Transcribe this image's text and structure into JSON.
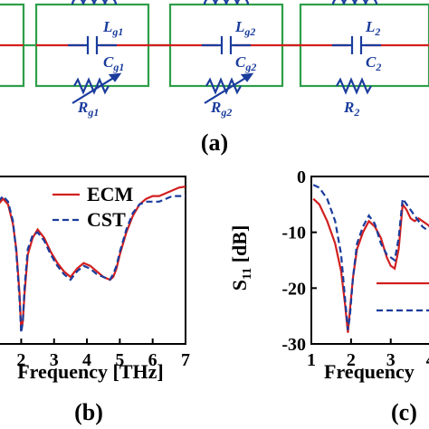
{
  "circuit": {
    "label": "(a)",
    "branches": [
      {
        "L": "L",
        "L_sub": "g1",
        "C": "C",
        "C_sub": "g1",
        "R": "R",
        "R_sub": "g1",
        "tunable": true
      },
      {
        "L": "L",
        "L_sub": "g2",
        "C": "C",
        "C_sub": "g2",
        "R": "R",
        "R_sub": "g2",
        "tunable": true
      },
      {
        "L": "L",
        "L_sub": "2",
        "C": "C",
        "C_sub": "2",
        "R": "R",
        "R_sub": "2",
        "tunable": false
      }
    ],
    "colors": {
      "wire_outer": "#2e9e4a",
      "wire_center": "#d21f1f",
      "component": "#1a3c9c"
    }
  },
  "chart_data": [
    {
      "panel_label": "(b)",
      "type": "line",
      "xlabel": "Frequency [THz]",
      "ylabel": "",
      "xticks": [
        "2",
        "3",
        "4",
        "5",
        "6",
        "7"
      ],
      "xlim": [
        1.3,
        7
      ],
      "ylim": [
        -30,
        0
      ],
      "legend_position": "top-right",
      "series": [
        {
          "name": "ECM",
          "color": "#d21f1f",
          "dash": "solid",
          "x": [
            1.3,
            1.45,
            1.6,
            1.75,
            1.85,
            1.95,
            2.0,
            2.05,
            2.1,
            2.2,
            2.35,
            2.5,
            2.7,
            2.9,
            3.1,
            3.3,
            3.5,
            3.7,
            3.9,
            4.1,
            4.3,
            4.5,
            4.7,
            4.8,
            4.9,
            5.0,
            5.2,
            5.4,
            5.6,
            5.8,
            6.0,
            6.2,
            6.4,
            6.6,
            6.8,
            7.0
          ],
          "y": [
            -5,
            -4,
            -5,
            -8.5,
            -13,
            -21,
            -27.5,
            -26,
            -21,
            -14,
            -11,
            -9.5,
            -11,
            -13.5,
            -15.5,
            -17,
            -18,
            -16.5,
            -15.5,
            -16,
            -17,
            -18,
            -18.5,
            -18,
            -16.5,
            -14,
            -10,
            -7,
            -5,
            -4,
            -3.5,
            -3.5,
            -3,
            -2.5,
            -2,
            -1.8
          ]
        },
        {
          "name": "CST",
          "color": "#1a3c9c",
          "dash": "dashed",
          "x": [
            1.3,
            1.45,
            1.6,
            1.75,
            1.85,
            1.95,
            2.0,
            2.05,
            2.1,
            2.2,
            2.35,
            2.5,
            2.7,
            2.9,
            3.1,
            3.3,
            3.5,
            3.7,
            3.9,
            4.1,
            4.3,
            4.5,
            4.7,
            4.8,
            4.9,
            5.0,
            5.2,
            5.4,
            5.6,
            5.8,
            6.0,
            6.2,
            6.4,
            6.6,
            6.8,
            7.0
          ],
          "y": [
            -4.5,
            -3.5,
            -4.5,
            -8,
            -13.5,
            -22,
            -28,
            -26,
            -20,
            -13,
            -10.5,
            -10,
            -11.5,
            -14,
            -16,
            -17.5,
            -18.5,
            -17,
            -16,
            -16.5,
            -17.5,
            -18,
            -18.5,
            -17.5,
            -16,
            -13.5,
            -9.5,
            -6.5,
            -5,
            -4.5,
            -4.5,
            -4.5,
            -4,
            -3.5,
            -3.5,
            -3.5
          ]
        }
      ]
    },
    {
      "panel_label": "(c)",
      "type": "line",
      "xlabel": "Frequency",
      "ylabel": "S11 [dB]",
      "ylabel_main": "S",
      "ylabel_sub": "11",
      "ylabel_unit": " [dB]",
      "xticks": [
        "1",
        "2",
        "3",
        "4"
      ],
      "yticks": [
        "0",
        "-10",
        "-20",
        "-30"
      ],
      "xlim": [
        1,
        4.1
      ],
      "ylim": [
        -30,
        0
      ],
      "legend_position": "bottom-right",
      "series": [
        {
          "color": "#d21f1f",
          "dash": "solid",
          "x": [
            1.05,
            1.2,
            1.4,
            1.6,
            1.75,
            1.85,
            1.92,
            1.97,
            2.05,
            2.15,
            2.3,
            2.45,
            2.6,
            2.75,
            2.9,
            3.0,
            3.1,
            3.2,
            3.3,
            3.4,
            3.5,
            3.6,
            3.7,
            3.8,
            3.9,
            4.0,
            4.1
          ],
          "y": [
            -4,
            -5,
            -8,
            -12,
            -17,
            -23,
            -28,
            -24,
            -18,
            -13,
            -10,
            -8,
            -9,
            -11,
            -14.5,
            -16,
            -16.5,
            -13,
            -5,
            -6,
            -7.5,
            -8,
            -7.5,
            -8,
            -8.5,
            -9,
            -9.5
          ]
        },
        {
          "color": "#1a3c9c",
          "dash": "dashed",
          "x": [
            1.05,
            1.2,
            1.4,
            1.6,
            1.75,
            1.85,
            1.92,
            1.97,
            2.05,
            2.15,
            2.3,
            2.45,
            2.6,
            2.75,
            2.9,
            3.0,
            3.1,
            3.2,
            3.3,
            3.4,
            3.5,
            3.6,
            3.7,
            3.8,
            3.9,
            4.0,
            4.1
          ],
          "y": [
            -1.5,
            -2,
            -4,
            -8,
            -14,
            -22,
            -27.5,
            -25,
            -18,
            -12,
            -9,
            -7,
            -8.5,
            -12,
            -14,
            -14.5,
            -15,
            -11,
            -4,
            -5,
            -6,
            -7,
            -8,
            -9,
            -9.5,
            -9,
            -9
          ]
        }
      ]
    }
  ]
}
